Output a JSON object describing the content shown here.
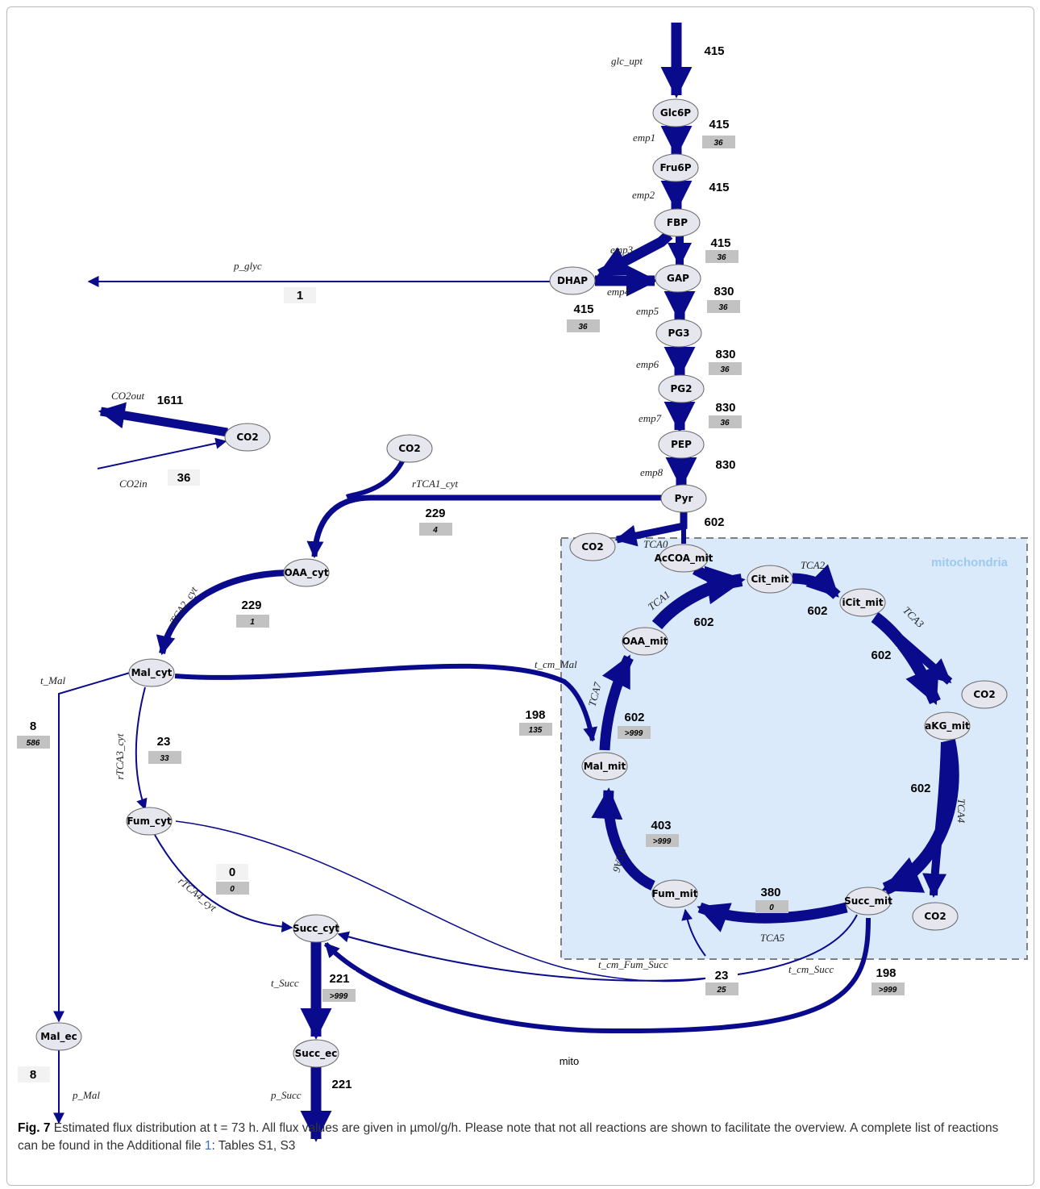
{
  "compartment": {
    "title": "mitochondria"
  },
  "region_label": "mito",
  "metabolites": {
    "glc6p": "Glc6P",
    "fru6p": "Fru6P",
    "fbp": "FBP",
    "dhap": "DHAP",
    "gap": "GAP",
    "pg3": "PG3",
    "pg2": "PG2",
    "pep": "PEP",
    "pyr": "Pyr",
    "co2_ext": "CO2",
    "co2_cyt": "CO2",
    "co2_pdh": "CO2",
    "co2_akg": "CO2",
    "co2_succ": "CO2",
    "oaa_cyt": "OAA_cyt",
    "mal_cyt": "Mal_cyt",
    "fum_cyt": "Fum_cyt",
    "succ_cyt": "Succ_cyt",
    "succ_ec": "Succ_ec",
    "mal_ec": "Mal_ec",
    "accoa_mit": "AcCOA_mit",
    "cit_mit": "Cit_mit",
    "icit_mit": "iCit_mit",
    "akg_mit": "aKG_mit",
    "succ_mit": "Succ_mit",
    "fum_mit": "Fum_mit",
    "mal_mit": "Mal_mit",
    "oaa_mit": "OAA_mit"
  },
  "reactions": {
    "glc_upt": "glc_upt",
    "emp1": "emp1",
    "emp2": "emp2",
    "emp3": "emp3",
    "emp4": "emp4",
    "emp5": "emp5",
    "emp6": "emp6",
    "emp7": "emp7",
    "emp8": "emp8",
    "p_glyc": "p_glyc",
    "co2out": "CO2out",
    "co2in": "CO2in",
    "rtca1_cyt": "rTCA1_cyt",
    "rtca2_cyt": "rTCA2_cyt",
    "rtca3_cyt": "rTCA3_cyt",
    "rtca4_cyt": "rTCA4_cyt",
    "t_mal": "t_Mal",
    "t_cm_mal": "t_cm_Mal",
    "t_succ": "t_Succ",
    "p_succ": "p_Succ",
    "p_mal": "p_Mal",
    "t_cm_fum_succ": "t_cm_Fum_Succ",
    "t_cm_succ": "t_cm_Succ",
    "tca0": "TCA0",
    "tca1": "TCA1",
    "tca2": "TCA2",
    "tca3": "TCA3",
    "tca4": "TCA4",
    "tca5": "TCA5",
    "tca6": "TCA6",
    "tca7": "TCA7"
  },
  "fluxes": {
    "glc_upt": "415",
    "emp1": "415",
    "emp1_dev": "36",
    "emp2": "415",
    "emp3": "415",
    "emp3_dev": "36",
    "emp4": "415",
    "emp4_dev": "36",
    "emp5": "830",
    "emp5_dev": "36",
    "emp6": "830",
    "emp6_dev": "36",
    "emp7": "830",
    "emp7_dev": "36",
    "emp8": "830",
    "p_glyc": "1",
    "co2out": "1611",
    "co2in": "36",
    "rtca1": "229",
    "rtca1_dev": "4",
    "tca0": "602",
    "rtca2": "229",
    "rtca2_dev": "1",
    "tca1": "602",
    "tca2": "602",
    "tca3": "602",
    "t_mal": "8",
    "t_mal_dev": "586",
    "t_cm_mal": "198",
    "t_cm_mal_dev": "135",
    "tca7": "602",
    "tca7_dev": ">999",
    "rtca3": "23",
    "rtca3_dev": "33",
    "tca4": "602",
    "tca6": "403",
    "tca6_dev": ">999",
    "rtca4": "0",
    "rtca4_dev": "0",
    "tca5": "380",
    "tca5_dev": "0",
    "t_succ": "221",
    "t_succ_dev": ">999",
    "t_cm_fum_succ": "23",
    "t_cm_fum_succ_dev": "25",
    "t_cm_succ": "198",
    "t_cm_succ_dev": ">999",
    "p_mal": "8",
    "p_succ": "221"
  },
  "caption": {
    "fig_label": "Fig. 7",
    "text_before_ref": "Estimated flux distribution at t = 73 h. All flux values are given in µmol/g/h. Please note that not all reactions are shown to facilitate the overview. A complete list of reactions can be found in the Additional file ",
    "ref": "1",
    "text_after_ref": ": Tables S1, S3"
  },
  "colors": {
    "flux_arrow": "#0a0a8c",
    "metabolite_fill": "#e6e6ef",
    "compartment_fill": "#dbeafb",
    "compartment_border": "#808080",
    "deviation_box": "#c2c2c2"
  }
}
